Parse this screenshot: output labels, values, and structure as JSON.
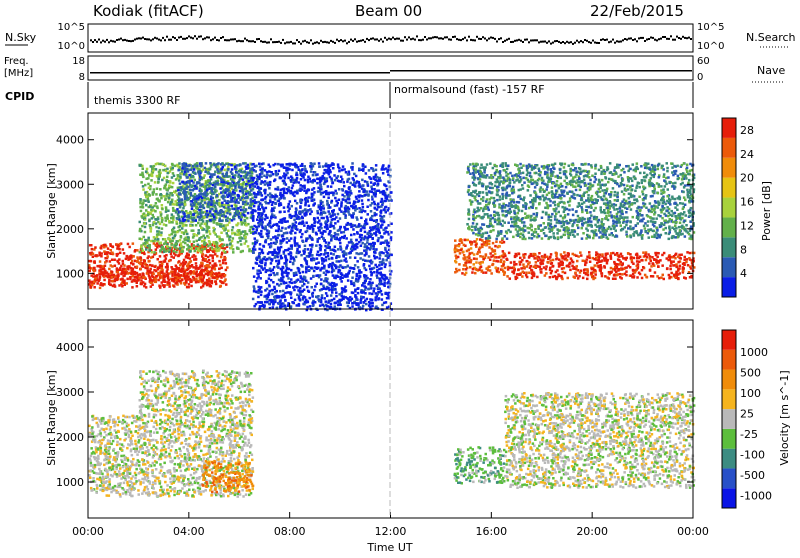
{
  "header": {
    "station": "Kodiak (fitACF)",
    "beam": "Beam 00",
    "date": "22/Feb/2015"
  },
  "top_panels": {
    "nsky_label": "N.Sky",
    "nsky_ticks": [
      "10^5",
      "10^0"
    ],
    "nsearch_label": "N.Search",
    "nsearch_ticks": [
      "10^5",
      "10^0"
    ],
    "freq_label_1": "Freq.",
    "freq_label_2": "[MHz]",
    "freq_ticks": [
      "18",
      "8"
    ],
    "nave_label": "Nave",
    "nave_ticks": [
      "60",
      "0"
    ],
    "cpid_label": "CPID",
    "cpid_left": "themis 3300 RF",
    "cpid_right": "normalsound (fast) -157 RF"
  },
  "colors": {
    "power_scale": [
      "#0a1ee6",
      "#2a5ab4",
      "#3a8c78",
      "#62b04a",
      "#a8d23c",
      "#e6c414",
      "#f08c0a",
      "#ec5a0a",
      "#e61e0a"
    ],
    "velocity_scale": [
      "#0a14e6",
      "#2850c8",
      "#3c8c82",
      "#5cbe3c",
      "#b9b9b9",
      "#f5b41e",
      "#f08c0a",
      "#ec5a0a",
      "#e61e0a"
    ],
    "ground_scatter": "#b4b4b4"
  },
  "chart_data": [
    {
      "type": "heatmap",
      "name": "Power",
      "ylabel": "Slant Range [km]",
      "y_ticks": [
        "1000",
        "2000",
        "3000",
        "4000"
      ],
      "ylim": [
        200,
        4600
      ],
      "x_ticks": [
        "00:00",
        "04:00",
        "08:00",
        "12:00",
        "16:00",
        "20:00",
        "00:00"
      ],
      "x_tick_hours": [
        0,
        4,
        8,
        12,
        16,
        20,
        24
      ],
      "xlim_hours": [
        0,
        24
      ],
      "colorbar_label": "Power [dB]",
      "colorbar_ticks": [
        "4",
        "8",
        "12",
        "16",
        "20",
        "24",
        "28"
      ],
      "colorbar_range": [
        0,
        30
      ],
      "regions": [
        {
          "t0": 0.0,
          "t1": 5.5,
          "r0": 700,
          "r1": 1700,
          "level": 8
        },
        {
          "t0": 0.0,
          "t1": 5.0,
          "r0": 800,
          "r1": 1200,
          "level": 8
        },
        {
          "t0": 2.0,
          "t1": 6.5,
          "r0": 1500,
          "r1": 3500,
          "level": 3
        },
        {
          "t0": 3.5,
          "t1": 6.5,
          "r0": 2200,
          "r1": 3500,
          "level": 1
        },
        {
          "t0": 6.5,
          "t1": 12.0,
          "r0": 200,
          "r1": 3500,
          "level": 0
        },
        {
          "t0": 14.5,
          "t1": 16.5,
          "r0": 1000,
          "r1": 1800,
          "level": 7
        },
        {
          "t0": 15.0,
          "t1": 24.0,
          "r0": 1800,
          "r1": 3500,
          "level": 2
        },
        {
          "t0": 16.5,
          "t1": 24.0,
          "r0": 900,
          "r1": 1500,
          "level": 8
        }
      ]
    },
    {
      "type": "heatmap",
      "name": "Velocity",
      "ylabel": "Slant Range [km]",
      "y_ticks": [
        "1000",
        "2000",
        "3000",
        "4000"
      ],
      "ylim": [
        200,
        4600
      ],
      "x_ticks": [
        "00:00",
        "04:00",
        "08:00",
        "12:00",
        "16:00",
        "20:00",
        "00:00"
      ],
      "x_tick_hours": [
        0,
        4,
        8,
        12,
        16,
        20,
        24
      ],
      "xlim_hours": [
        0,
        24
      ],
      "xlabel": "Time UT",
      "colorbar_label": "Velocity [m s^-1]",
      "colorbar_ticks": [
        "1000",
        "500",
        "100",
        "25",
        "-25",
        "-100",
        "-500",
        "-1000"
      ],
      "regions": [
        {
          "t0": 0.0,
          "t1": 6.5,
          "r0": 700,
          "r1": 2500,
          "level": 4
        },
        {
          "t0": 2.0,
          "t1": 6.5,
          "r0": 2500,
          "r1": 3500,
          "level": 4
        },
        {
          "t0": 4.5,
          "t1": 6.5,
          "r0": 800,
          "r1": 1500,
          "level": 6
        },
        {
          "t0": 14.5,
          "t1": 16.5,
          "r0": 1000,
          "r1": 1800,
          "level": 3
        },
        {
          "t0": 16.5,
          "t1": 24.0,
          "r0": 900,
          "r1": 3000,
          "level": 4
        }
      ]
    }
  ]
}
